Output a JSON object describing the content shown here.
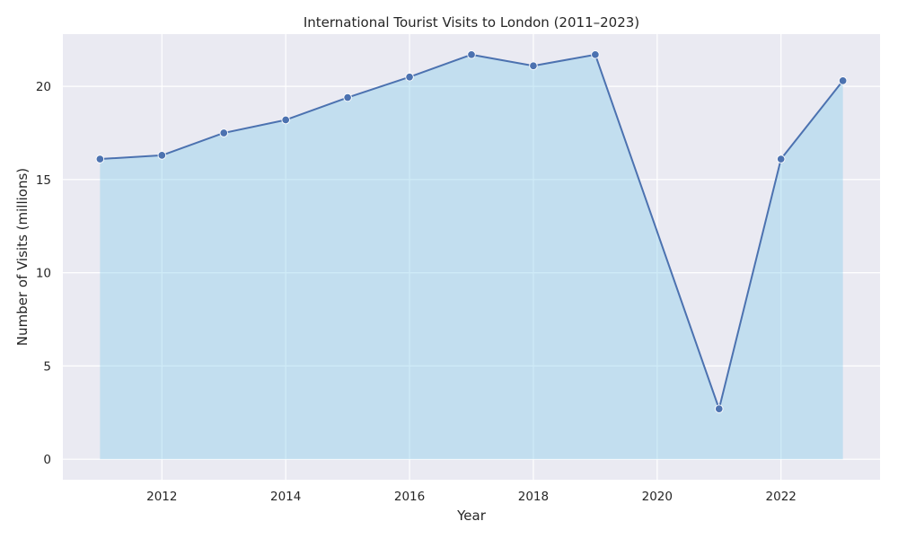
{
  "chart_data": {
    "type": "area",
    "title": "International Tourist Visits to London (2011–2023)",
    "xlabel": "Year",
    "ylabel": "Number of Visits (millions)",
    "xlim": [
      2010.4,
      2023.6
    ],
    "ylim": [
      -1.1,
      22.8
    ],
    "xticks": [
      2012,
      2014,
      2016,
      2018,
      2020,
      2022
    ],
    "yticks": [
      0,
      5,
      10,
      15,
      20
    ],
    "grid": true,
    "legend": "none",
    "x": [
      2011,
      2012,
      2013,
      2014,
      2015,
      2016,
      2017,
      2018,
      2019,
      2021,
      2022,
      2023
    ],
    "series": [
      {
        "values": [
          16.1,
          16.3,
          17.5,
          18.2,
          19.4,
          20.5,
          21.7,
          21.1,
          21.7,
          2.7,
          16.1,
          20.3
        ]
      }
    ],
    "colors": {
      "background": "#eaeaf2",
      "line": "#4c72b0",
      "fill": "#87ceeb",
      "grid": "#ffffff"
    }
  }
}
